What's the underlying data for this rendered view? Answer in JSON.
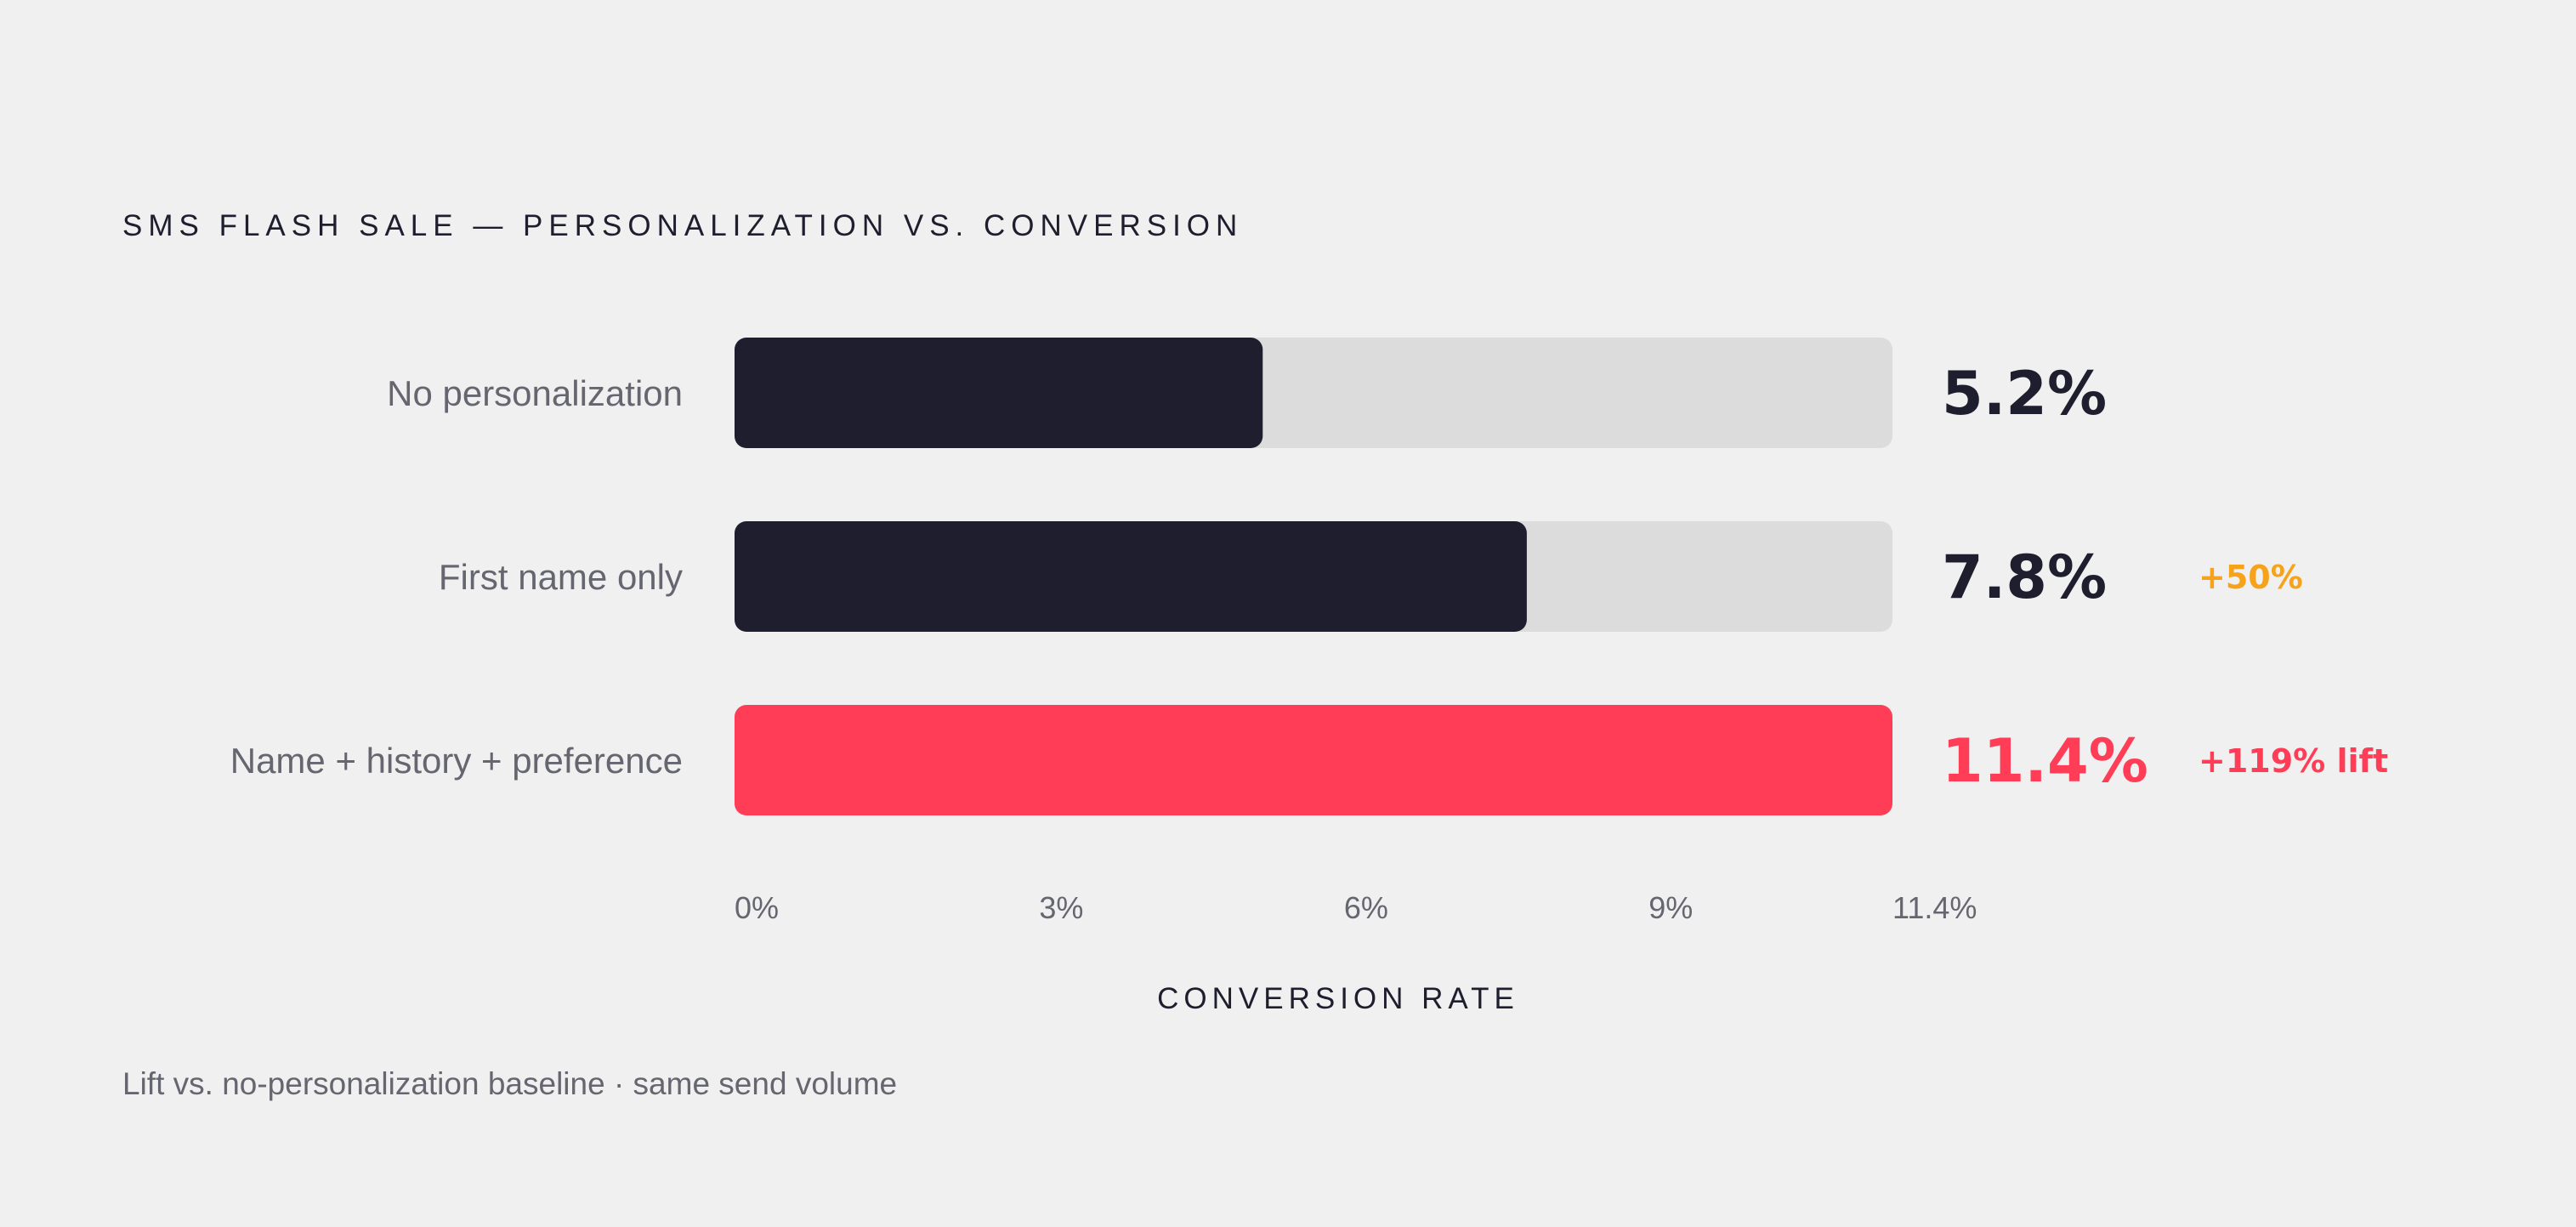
{
  "chart_data": {
    "type": "bar",
    "orientation": "horizontal",
    "title": "SMS FLASH SALE — PERSONALIZATION VS. CONVERSION",
    "categories": [
      "No personalization",
      "First name only",
      "Name + history + preference"
    ],
    "values": [
      5.2,
      7.8,
      11.4
    ],
    "value_labels": [
      "5.2%",
      "7.8%",
      "11.4%"
    ],
    "lift_labels": [
      "",
      "+50%",
      "+119% lift"
    ],
    "xlabel": "CONVERSION RATE",
    "ylabel": "",
    "xlim": [
      0,
      11.4
    ],
    "ticks": [
      0,
      3,
      6,
      9,
      11.4
    ],
    "tick_labels": [
      "0%",
      "3%",
      "6%",
      "9%",
      "11.4%"
    ],
    "grid": false,
    "footnote": "Lift vs. no-personalization baseline · same send volume",
    "colors": {
      "bar": "#1e1e2e",
      "highlight": "#ff3d57",
      "track": "#dcdcdc",
      "value_text": "#1e1e2e",
      "lift_mid": "#f7a21b",
      "lift_high": "#ff3d57",
      "background": "#f0f0f0"
    }
  }
}
